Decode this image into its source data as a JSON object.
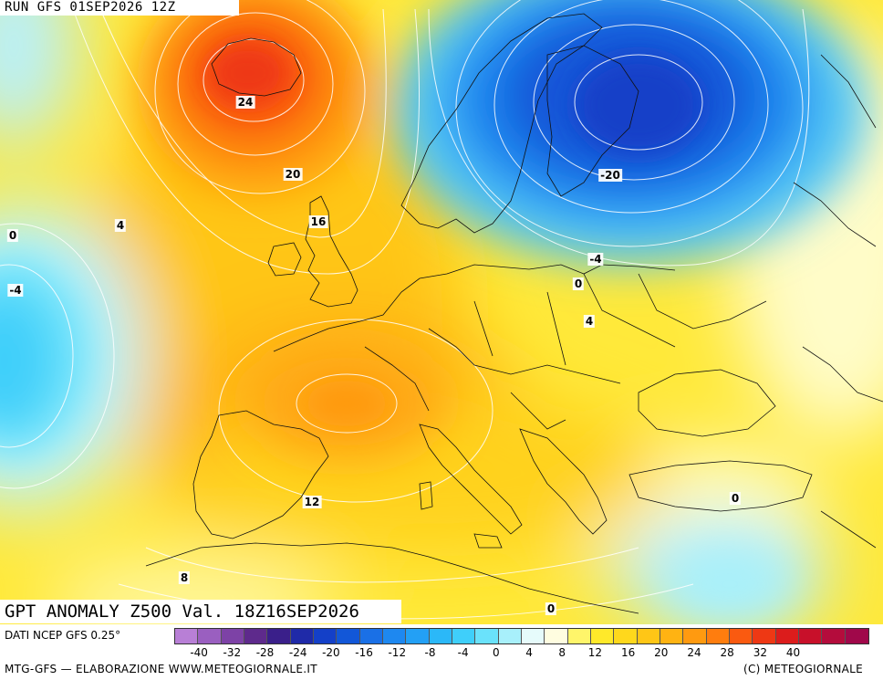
{
  "header": {
    "run_label": "RUN GFS 01SEP2026 12Z"
  },
  "map": {
    "title": "GPT ANOMALY Z500 Val. 18Z16SEP2026",
    "contour_labels": [
      {
        "id": "label-24",
        "text": "24"
      },
      {
        "id": "label-20-north",
        "text": "20"
      },
      {
        "id": "label-16",
        "text": "16"
      },
      {
        "id": "label-4-atlantic",
        "text": "4"
      },
      {
        "id": "label-0-west",
        "text": "0"
      },
      {
        "id": "label-neg4-west",
        "text": "-4"
      },
      {
        "id": "label-neg20",
        "text": "-20"
      },
      {
        "id": "label-neg4-east",
        "text": "-4"
      },
      {
        "id": "label-0-baltic",
        "text": "0"
      },
      {
        "id": "label-4-east",
        "text": "4"
      },
      {
        "id": "label-12",
        "text": "12"
      },
      {
        "id": "label-8",
        "text": "8"
      },
      {
        "id": "label-0-med",
        "text": "0"
      },
      {
        "id": "label-0-south",
        "text": "0"
      }
    ]
  },
  "footer": {
    "dati": "DATI NCEP GFS 0.25°",
    "credit_left": "MTG-GFS — ELABORAZIONE WWW.METEOGIORNALE.IT",
    "credit_right": "(C) METEOGIORNALE"
  },
  "colorbar": {
    "colors": [
      "#b87fd6",
      "#9a5fc0",
      "#7d42a6",
      "#5e2a8c",
      "#3a1f8a",
      "#1f2aa8",
      "#1440c8",
      "#1257d8",
      "#1a70e6",
      "#1e88f0",
      "#23a0f5",
      "#2bb8f8",
      "#3fcffa",
      "#6ae2fb",
      "#a8f0fb",
      "#e6fbfb",
      "#fffde0",
      "#fff56a",
      "#ffe92a",
      "#ffd81c",
      "#ffc616",
      "#ffb312",
      "#ff9a10",
      "#ff7d0e",
      "#fa5a10",
      "#ee3814",
      "#dc1c1c",
      "#c8102a",
      "#b40c3c",
      "#a0084a"
    ],
    "tick_labels": [
      "-40",
      "-32",
      "-28",
      "-24",
      "-20",
      "-16",
      "-12",
      "-8",
      "-4",
      "0",
      "4",
      "8",
      "12",
      "16",
      "20",
      "24",
      "28",
      "32",
      "40"
    ]
  }
}
